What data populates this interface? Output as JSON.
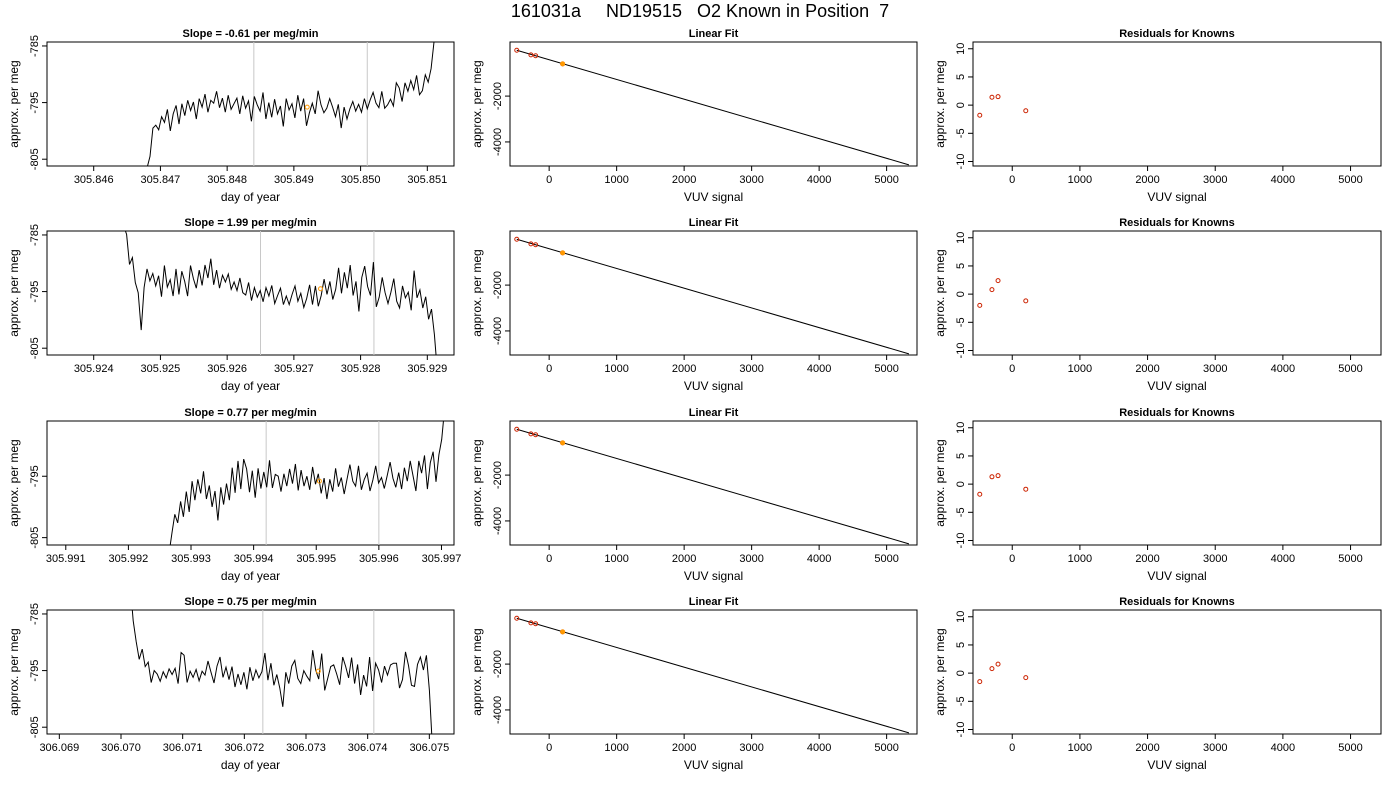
{
  "header": {
    "title": "161031a     ND19515   O2 Known in Position  7"
  },
  "colors": {
    "line": "#000000",
    "vline": "#c8c8c8",
    "known_point": "#cc2200",
    "current_point": "#ff9900",
    "axis": "#000000"
  },
  "chart_data": [
    {
      "type": "line",
      "row": 1,
      "panel": "time-series",
      "title": "Slope =  -0.61  per meg/min",
      "xlabel": "day of year",
      "ylabel": "approx. per meg",
      "xlim": [
        305.8453,
        305.8514
      ],
      "ylim": [
        -806.2,
        -784.3
      ],
      "xticks": [
        "305.846",
        "305.847",
        "305.848",
        "305.849",
        "305.850",
        "305.851"
      ],
      "yticks": [
        "-785",
        "-795",
        "-805"
      ],
      "vertical_lines": [
        305.8484,
        305.8501
      ],
      "series": [
        {
          "x_start": 305.8468,
          "x_end": 305.8511,
          "y": [
            -806.5,
            -804.5,
            -799.5,
            -799.0,
            -799.8,
            -797.5,
            -798.5,
            -796.2,
            -800.0,
            -797.0,
            -795.5,
            -798.8,
            -795.2,
            -797.3,
            -794.6,
            -796.4,
            -794.9,
            -797.9,
            -794.3,
            -795.8,
            -793.5,
            -796.7,
            -794.6,
            -795.1,
            -793.0,
            -795.9,
            -794.2,
            -796.7,
            -793.7,
            -796.2,
            -795.2,
            -794.2,
            -797.0,
            -793.8,
            -796.0,
            -794.7,
            -798.3,
            -793.9,
            -795.4,
            -796.5,
            -793.2,
            -797.9,
            -795.0,
            -797.6,
            -794.4,
            -797.0,
            -795.6,
            -799.2,
            -794.3,
            -796.3,
            -795.2,
            -797.7,
            -793.7,
            -796.5,
            -794.3,
            -799.1,
            -796.8,
            -795.1,
            -797.0,
            -792.9,
            -795.4,
            -796.8,
            -796.0,
            -794.3,
            -795.8,
            -797.5,
            -795.3,
            -799.5,
            -795.8,
            -797.9,
            -796.1,
            -794.8,
            -796.5,
            -795.3,
            -796.7,
            -794.3,
            -796.1,
            -794.5,
            -793.2,
            -795.1,
            -795.9,
            -793.0,
            -796.0,
            -795.4,
            -794.4,
            -795.6,
            -791.5,
            -792.4,
            -794.8,
            -791.5,
            -793.0,
            -791.1,
            -792.7,
            -790.2,
            -793.6,
            -792.9,
            -790.1,
            -791.4,
            -789.0,
            -784.3
          ]
        }
      ],
      "current_point": {
        "x": 305.8492,
        "y": -795.8
      }
    },
    {
      "type": "scatter",
      "row": 1,
      "panel": "linear-fit",
      "title": "Linear Fit",
      "xlabel": "VUV signal",
      "ylabel": "approx. per meg",
      "xlim": [
        -580,
        5450
      ],
      "ylim": [
        -5050,
        360
      ],
      "xticks": [
        "0",
        "1000",
        "2000",
        "3000",
        "4000",
        "5000"
      ],
      "yticks": [
        "-2000",
        "-4000"
      ],
      "fit_line": {
        "x": [
          -480,
          5330
        ],
        "y": [
          0,
          -5000
        ]
      },
      "known_points": [
        {
          "x": -480,
          "y": 0
        },
        {
          "x": -270,
          "y": -200
        },
        {
          "x": -200,
          "y": -240
        },
        {
          "x": 200,
          "y": -595
        }
      ],
      "current_point": {
        "x": 200,
        "y": -595
      }
    },
    {
      "type": "scatter",
      "row": 1,
      "panel": "residuals",
      "title": "Residuals for Knowns",
      "xlabel": "VUV signal",
      "ylabel": "approx. per meg",
      "xlim": [
        -580,
        5450
      ],
      "ylim": [
        -10.8,
        11.2
      ],
      "xticks": [
        "0",
        "1000",
        "2000",
        "3000",
        "4000",
        "5000"
      ],
      "yticks": [
        "10",
        "5",
        "0",
        "-5",
        "-10"
      ],
      "points": [
        {
          "x": -480,
          "y": -1.8
        },
        {
          "x": -300,
          "y": 1.4
        },
        {
          "x": -210,
          "y": 1.5
        },
        {
          "x": 200,
          "y": -1.0
        }
      ]
    },
    {
      "type": "line",
      "row": 2,
      "panel": "time-series",
      "title": "Slope =  1.99  per meg/min",
      "xlabel": "day of year",
      "ylabel": "approx. per meg",
      "xlim": [
        305.9233,
        305.9294
      ],
      "ylim": [
        -806.2,
        -784.3
      ],
      "xticks": [
        "305.924",
        "305.925",
        "305.926",
        "305.927",
        "305.928",
        "305.929"
      ],
      "yticks": [
        "-785",
        "-795",
        "-805"
      ],
      "vertical_lines": [
        305.9265,
        305.9282
      ],
      "series": [
        {
          "x_start": 305.92445,
          "x_end": 305.92915,
          "y": [
            -783.4,
            -784.9,
            -790.2,
            -789.0,
            -793.4,
            -795.2,
            -801.8,
            -794.3,
            -791.0,
            -793.1,
            -791.8,
            -794.0,
            -792.2,
            -795.9,
            -790.4,
            -794.2,
            -792.9,
            -795.8,
            -791.0,
            -795.5,
            -791.4,
            -793.2,
            -795.8,
            -790.4,
            -792.7,
            -794.4,
            -791.2,
            -793.9,
            -790.3,
            -792.6,
            -789.2,
            -793.8,
            -791.2,
            -794.4,
            -792.1,
            -793.3,
            -791.9,
            -794.6,
            -793.3,
            -794.8,
            -792.6,
            -795.2,
            -795.6,
            -793.4,
            -796.6,
            -794.3,
            -796.0,
            -794.8,
            -796.8,
            -794.3,
            -795.8,
            -793.9,
            -797.1,
            -795.7,
            -794.4,
            -797.3,
            -795.8,
            -797.3,
            -795.5,
            -794.0,
            -796.7,
            -795.3,
            -797.8,
            -796.2,
            -793.8,
            -797.3,
            -794.0,
            -797.6,
            -795.7,
            -792.8,
            -795.5,
            -793.2,
            -796.4,
            -794.6,
            -790.8,
            -795.3,
            -791.6,
            -794.4,
            -790.3,
            -795.7,
            -793.2,
            -798.5,
            -792.5,
            -790.5,
            -794.1,
            -795.7,
            -789.8,
            -797.7,
            -796.0,
            -792.5,
            -795.2,
            -797.1,
            -795.1,
            -792.7,
            -796.7,
            -797.9,
            -794.0,
            -796.1,
            -795.1,
            -798.3,
            -791.3,
            -796.1,
            -794.7,
            -797.9,
            -795.9,
            -799.9,
            -798.1,
            -802.6,
            -809.0
          ]
        }
      ],
      "current_point": {
        "x": 305.9274,
        "y": -794.5
      }
    },
    {
      "type": "scatter",
      "row": 2,
      "panel": "linear-fit",
      "title": "Linear Fit",
      "xlabel": "VUV signal",
      "ylabel": "approx. per meg",
      "xlim": [
        -580,
        5450
      ],
      "ylim": [
        -5050,
        360
      ],
      "xticks": [
        "0",
        "1000",
        "2000",
        "3000",
        "4000",
        "5000"
      ],
      "yticks": [
        "-2000",
        "-4000"
      ],
      "fit_line": {
        "x": [
          -480,
          5330
        ],
        "y": [
          0,
          -5000
        ]
      },
      "known_points": [
        {
          "x": -480,
          "y": 0
        },
        {
          "x": -270,
          "y": -200
        },
        {
          "x": -200,
          "y": -240
        },
        {
          "x": 200,
          "y": -595
        }
      ],
      "current_point": {
        "x": 200,
        "y": -595
      }
    },
    {
      "type": "scatter",
      "row": 2,
      "panel": "residuals",
      "title": "Residuals for Knowns",
      "xlabel": "VUV signal",
      "ylabel": "approx. per meg",
      "xlim": [
        -580,
        5450
      ],
      "ylim": [
        -10.8,
        11.2
      ],
      "xticks": [
        "0",
        "1000",
        "2000",
        "3000",
        "4000",
        "5000"
      ],
      "yticks": [
        "10",
        "5",
        "0",
        "-5",
        "-10"
      ],
      "points": [
        {
          "x": -480,
          "y": -2.0
        },
        {
          "x": -300,
          "y": 0.8
        },
        {
          "x": -210,
          "y": 2.4
        },
        {
          "x": 200,
          "y": -1.2
        }
      ]
    },
    {
      "type": "line",
      "row": 3,
      "panel": "time-series",
      "title": "Slope =  0.77  per meg/min",
      "xlabel": "day of year",
      "ylabel": "approx. per meg",
      "xlim": [
        305.9907,
        305.9972
      ],
      "ylim": [
        -806.2,
        -786.0
      ],
      "xticks": [
        "305.991",
        "305.992",
        "305.993",
        "305.994",
        "305.995",
        "305.996",
        "305.997"
      ],
      "yticks": [
        "-795",
        "-805"
      ],
      "vertical_lines": [
        305.9942,
        305.996
      ],
      "series": [
        {
          "x_start": 305.99265,
          "x_end": 305.99705,
          "y": [
            -807.5,
            -804.2,
            -801.2,
            -802.6,
            -799.1,
            -801.6,
            -797.5,
            -800.8,
            -795.8,
            -798.9,
            -795.5,
            -797.8,
            -794.2,
            -798.7,
            -796.5,
            -800.0,
            -797.4,
            -802.2,
            -796.8,
            -799.6,
            -796.2,
            -798.9,
            -793.6,
            -797.7,
            -792.5,
            -797.1,
            -792.2,
            -793.8,
            -797.6,
            -794.1,
            -798.5,
            -793.7,
            -797.0,
            -794.3,
            -796.8,
            -792.4,
            -796.9,
            -794.7,
            -795.0,
            -797.5,
            -794.6,
            -796.6,
            -793.8,
            -796.2,
            -793.0,
            -797.3,
            -794.0,
            -796.6,
            -795.0,
            -797.2,
            -793.5,
            -796.3,
            -794.6,
            -797.8,
            -795.3,
            -798.7,
            -795.5,
            -797.5,
            -793.7,
            -796.7,
            -795.2,
            -797.9,
            -795.5,
            -793.1,
            -795.8,
            -796.6,
            -793.3,
            -797.2,
            -795.5,
            -794.5,
            -797.4,
            -795.6,
            -793.3,
            -796.1,
            -795.2,
            -797.0,
            -794.9,
            -792.7,
            -795.3,
            -796.8,
            -794.4,
            -797.1,
            -793.6,
            -795.8,
            -792.5,
            -794.9,
            -797.4,
            -792.5,
            -794.5,
            -791.6,
            -797.1,
            -792.8,
            -791.0,
            -795.9,
            -791.5,
            -789.0,
            -784.0
          ]
        }
      ],
      "current_point": {
        "x": 305.99505,
        "y": -795.8
      }
    },
    {
      "type": "scatter",
      "row": 3,
      "panel": "linear-fit",
      "title": "Linear Fit",
      "xlabel": "VUV signal",
      "ylabel": "approx. per meg",
      "xlim": [
        -580,
        5450
      ],
      "ylim": [
        -5050,
        360
      ],
      "xticks": [
        "0",
        "1000",
        "2000",
        "3000",
        "4000",
        "5000"
      ],
      "yticks": [
        "-2000",
        "-4000"
      ],
      "fit_line": {
        "x": [
          -480,
          5330
        ],
        "y": [
          0,
          -5000
        ]
      },
      "known_points": [
        {
          "x": -480,
          "y": 0
        },
        {
          "x": -270,
          "y": -200
        },
        {
          "x": -200,
          "y": -240
        },
        {
          "x": 200,
          "y": -595
        }
      ],
      "current_point": {
        "x": 200,
        "y": -595
      }
    },
    {
      "type": "scatter",
      "row": 3,
      "panel": "residuals",
      "title": "Residuals for Knowns",
      "xlabel": "VUV signal",
      "ylabel": "approx. per meg",
      "xlim": [
        -580,
        5450
      ],
      "ylim": [
        -10.8,
        11.2
      ],
      "xticks": [
        "0",
        "1000",
        "2000",
        "3000",
        "4000",
        "5000"
      ],
      "yticks": [
        "10",
        "5",
        "0",
        "-5",
        "-10"
      ],
      "points": [
        {
          "x": -480,
          "y": -1.8
        },
        {
          "x": -300,
          "y": 1.3
        },
        {
          "x": -210,
          "y": 1.5
        },
        {
          "x": 200,
          "y": -0.9
        }
      ]
    },
    {
      "type": "line",
      "row": 4,
      "panel": "time-series",
      "title": "Slope =  0.75  per meg/min",
      "xlabel": "day of year",
      "ylabel": "approx. per meg",
      "xlim": [
        306.0688,
        306.0754
      ],
      "ylim": [
        -806.2,
        -784.3
      ],
      "xticks": [
        "306.069",
        "306.070",
        "306.071",
        "306.072",
        "306.073",
        "306.074",
        "306.075"
      ],
      "yticks": [
        "-785",
        "-795",
        "-805"
      ],
      "vertical_lines": [
        306.0723,
        306.0741
      ],
      "series": [
        {
          "x_start": 306.07015,
          "x_end": 306.07505,
          "y": [
            -780.0,
            -786.2,
            -789.9,
            -793.0,
            -791.2,
            -794.3,
            -793.5,
            -797.1,
            -795.0,
            -795.6,
            -796.9,
            -795.2,
            -796.3,
            -794.7,
            -795.7,
            -794.6,
            -797.3,
            -791.8,
            -792.3,
            -797.1,
            -795.1,
            -796.2,
            -794.8,
            -796.8,
            -795.1,
            -795.8,
            -793.3,
            -795.3,
            -797.2,
            -794.2,
            -792.6,
            -796.2,
            -794.4,
            -796.6,
            -794.3,
            -797.9,
            -795.6,
            -797.5,
            -795.3,
            -798.3,
            -794.4,
            -796.8,
            -794.9,
            -796.3,
            -795.2,
            -791.9,
            -796.7,
            -793.7,
            -797.6,
            -795.7,
            -798.1,
            -801.4,
            -795.3,
            -797.3,
            -794.2,
            -793.2,
            -796.4,
            -797.3,
            -795.0,
            -796.0,
            -796.8,
            -791.4,
            -794.9,
            -796.5,
            -792.0,
            -798.5,
            -796.4,
            -794.3,
            -794.0,
            -795.6,
            -797.5,
            -792.6,
            -794.3,
            -796.3,
            -792.7,
            -797.3,
            -793.9,
            -799.3,
            -795.8,
            -797.8,
            -792.6,
            -798.6,
            -793.7,
            -794.9,
            -797.1,
            -794.2,
            -795.8,
            -794.0,
            -793.7,
            -793.7,
            -798.1,
            -796.6,
            -791.7,
            -794.1,
            -797.6,
            -797.8,
            -793.9,
            -792.6,
            -794.9,
            -792.3,
            -798.5,
            -808.5
          ]
        }
      ],
      "current_point": {
        "x": 306.0732,
        "y": -795.1
      }
    },
    {
      "type": "scatter",
      "row": 4,
      "panel": "linear-fit",
      "title": "Linear Fit",
      "xlabel": "VUV signal",
      "ylabel": "approx. per meg",
      "xlim": [
        -580,
        5450
      ],
      "ylim": [
        -5050,
        360
      ],
      "xticks": [
        "0",
        "1000",
        "2000",
        "3000",
        "4000",
        "5000"
      ],
      "yticks": [
        "-2000",
        "-4000"
      ],
      "fit_line": {
        "x": [
          -480,
          5330
        ],
        "y": [
          0,
          -5000
        ]
      },
      "known_points": [
        {
          "x": -480,
          "y": 0
        },
        {
          "x": -270,
          "y": -200
        },
        {
          "x": -200,
          "y": -240
        },
        {
          "x": 200,
          "y": -595
        }
      ],
      "current_point": {
        "x": 200,
        "y": -595
      }
    },
    {
      "type": "scatter",
      "row": 4,
      "panel": "residuals",
      "title": "Residuals for Knowns",
      "xlabel": "VUV signal",
      "ylabel": "approx. per meg",
      "xlim": [
        -580,
        5450
      ],
      "ylim": [
        -10.8,
        11.2
      ],
      "xticks": [
        "0",
        "1000",
        "2000",
        "3000",
        "4000",
        "5000"
      ],
      "yticks": [
        "10",
        "5",
        "0",
        "-5",
        "-10"
      ],
      "points": [
        {
          "x": -480,
          "y": -1.5
        },
        {
          "x": -300,
          "y": 0.8
        },
        {
          "x": -210,
          "y": 1.6
        },
        {
          "x": 200,
          "y": -0.8
        }
      ]
    }
  ]
}
